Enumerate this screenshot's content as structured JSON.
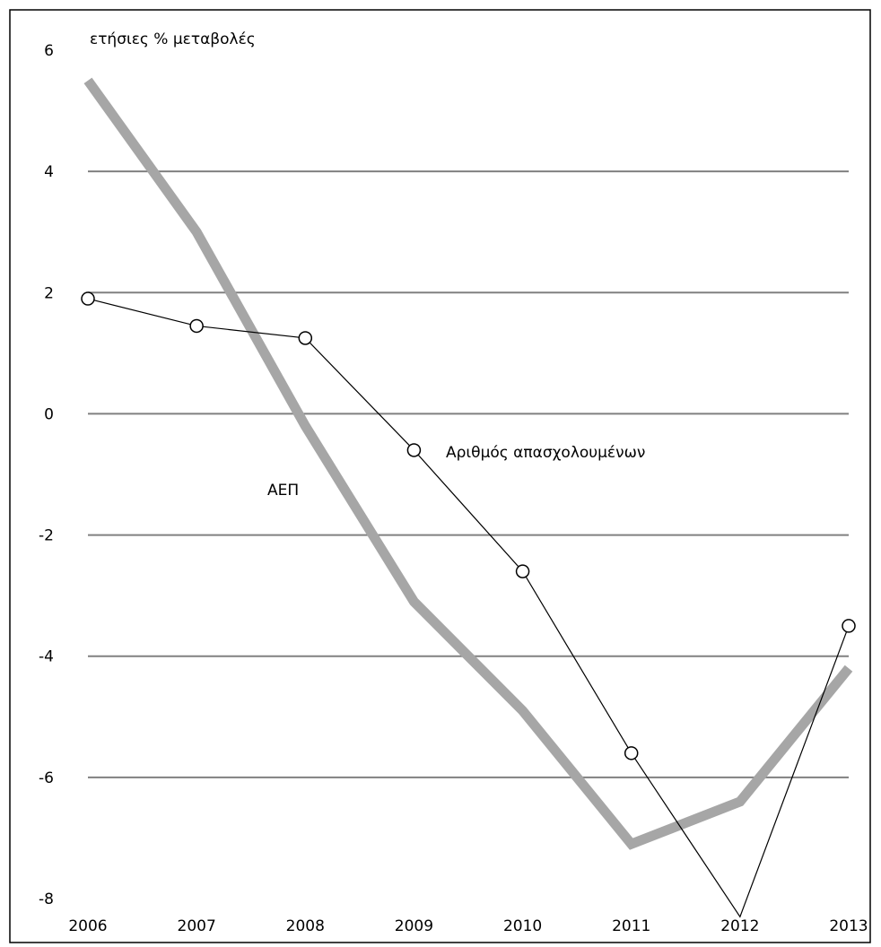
{
  "chart_data": {
    "type": "line",
    "title": "",
    "ylabel": "ετήσιες % μεταβολές",
    "xlabel": "",
    "x": [
      "2006",
      "2007",
      "2008",
      "2009",
      "2010",
      "2011",
      "2012",
      "2013"
    ],
    "yticks": [
      "6",
      "4",
      "2",
      "0",
      "-2",
      "-4",
      "-6",
      "-8"
    ],
    "ylim": [
      -8,
      6
    ],
    "grid": true,
    "series": [
      {
        "name": "ΑΕΠ",
        "values": [
          5.5,
          3.0,
          -0.2,
          -3.1,
          -4.9,
          -7.1,
          -6.4,
          -4.2
        ],
        "color": "#a6a6a6",
        "style": "thick"
      },
      {
        "name": "Αριθμός απασχολουμένων",
        "values": [
          1.9,
          1.45,
          1.25,
          -0.6,
          -2.6,
          -5.6,
          -8.3,
          -3.5
        ],
        "color": "#000000",
        "style": "thin-with-hollow-markers"
      }
    ]
  }
}
